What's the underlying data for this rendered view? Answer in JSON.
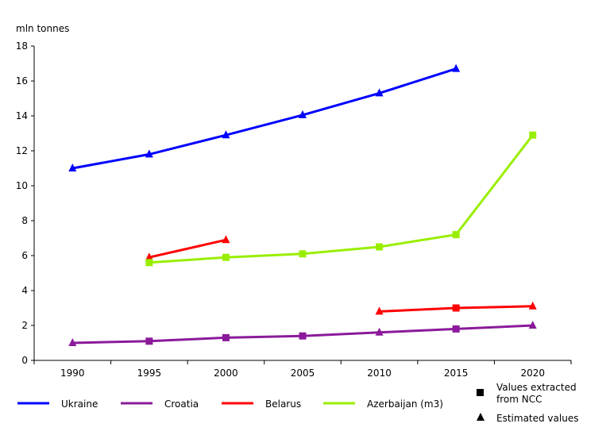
{
  "chart_data": {
    "type": "line",
    "ylabel": "mln tonnes",
    "ylim": [
      0,
      18
    ],
    "yticks": [
      0,
      2,
      4,
      6,
      8,
      10,
      12,
      14,
      16,
      18
    ],
    "categories": [
      "1990",
      "1995",
      "2000",
      "2005",
      "2010",
      "2015",
      "2020"
    ],
    "grid": false,
    "series": [
      {
        "name": "Ukraine",
        "color": "#0000ff",
        "segments": [
          [
            {
              "x": "1990",
              "y": 11.0,
              "m": "triangle"
            },
            {
              "x": "1995",
              "y": 11.8,
              "m": "triangle"
            },
            {
              "x": "2000",
              "y": 12.9,
              "m": "triangle"
            },
            {
              "x": "2005",
              "y": 14.05,
              "m": "triangle"
            },
            {
              "x": "2010",
              "y": 15.3,
              "m": "triangle"
            },
            {
              "x": "2015",
              "y": 16.7,
              "m": "triangle"
            }
          ]
        ]
      },
      {
        "name": "Croatia",
        "color": "#8b1a9b",
        "segments": [
          [
            {
              "x": "1990",
              "y": 1.0,
              "m": "triangle"
            },
            {
              "x": "1995",
              "y": 1.1,
              "m": "square"
            },
            {
              "x": "2000",
              "y": 1.3,
              "m": "square"
            },
            {
              "x": "2005",
              "y": 1.4,
              "m": "square"
            },
            {
              "x": "2010",
              "y": 1.6,
              "m": "triangle"
            },
            {
              "x": "2015",
              "y": 1.8,
              "m": "square"
            },
            {
              "x": "2020",
              "y": 2.0,
              "m": "triangle"
            }
          ]
        ]
      },
      {
        "name": "Belarus",
        "color": "#ff0000",
        "segments": [
          [
            {
              "x": "1995",
              "y": 5.9,
              "m": "triangle"
            },
            {
              "x": "2000",
              "y": 6.9,
              "m": "triangle"
            }
          ],
          [
            {
              "x": "2010",
              "y": 2.8,
              "m": "triangle"
            },
            {
              "x": "2015",
              "y": 3.0,
              "m": "square"
            },
            {
              "x": "2020",
              "y": 3.1,
              "m": "triangle"
            }
          ]
        ]
      },
      {
        "name": "Azerbaijan (m3)",
        "color": "#99ee00",
        "segments": [
          [
            {
              "x": "1995",
              "y": 5.6,
              "m": "square"
            },
            {
              "x": "2000",
              "y": 5.9,
              "m": "square"
            },
            {
              "x": "2005",
              "y": 6.1,
              "m": "square"
            },
            {
              "x": "2010",
              "y": 6.5,
              "m": "square"
            },
            {
              "x": "2015",
              "y": 7.2,
              "m": "square"
            },
            {
              "x": "2020",
              "y": 12.9,
              "m": "square"
            }
          ]
        ]
      }
    ],
    "marker_legend": {
      "square_line1": "Values extracted",
      "square_line2": "from NCC",
      "triangle": "Estimated values"
    }
  }
}
